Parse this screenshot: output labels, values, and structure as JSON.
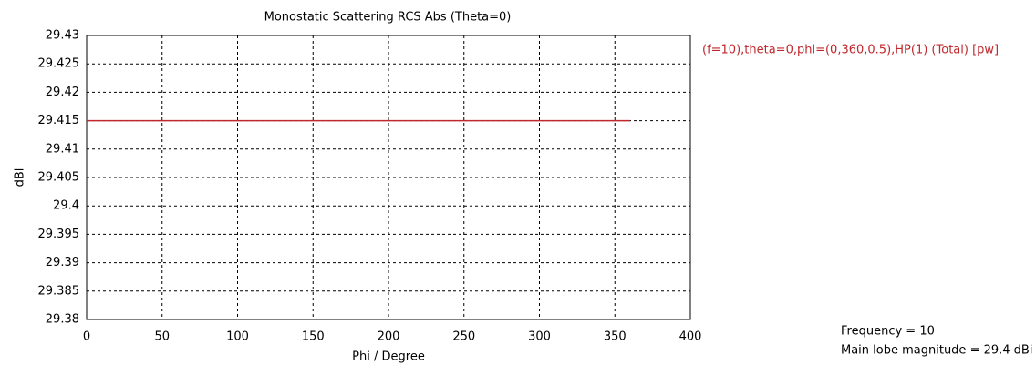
{
  "chart_data": {
    "type": "line",
    "title": "Monostatic Scattering RCS Abs (Theta=0)",
    "x_label": "Phi / Degree",
    "y_label": "dBi",
    "x": [
      0,
      360
    ],
    "series": [
      {
        "name": "(f=10),theta=0,phi=(0,360,0.5),HP(1) (Total) [pw]",
        "color": "#c0282d",
        "values": [
          29.415,
          29.415
        ]
      }
    ],
    "xlim": [
      0,
      400
    ],
    "xticks": [
      0,
      50,
      100,
      150,
      200,
      250,
      300,
      350,
      400
    ],
    "ylim": [
      29.38,
      29.43
    ],
    "yticks": [
      29.38,
      29.385,
      29.39,
      29.395,
      29.4,
      29.405,
      29.41,
      29.415,
      29.42,
      29.425,
      29.43
    ],
    "grid": true,
    "annotations": [
      "Frequency = 10",
      "Main lobe magnitude = 29.4 dBi"
    ]
  }
}
